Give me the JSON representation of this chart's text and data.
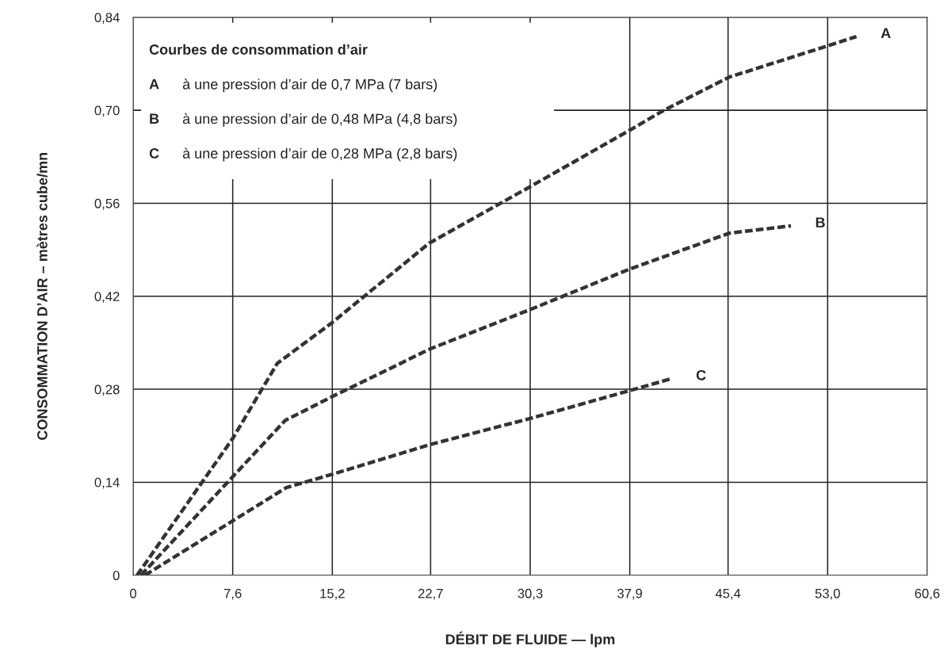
{
  "chart_data": {
    "type": "line",
    "xlabel": "DÉBIT DE FLUIDE — lpm",
    "ylabel": "CONSOMMATION D’AIR – mètres cube/mn",
    "legend_title": "Courbes de consommation d’air",
    "annotations": [
      "à une pression d’air de 0,7 MPa (7 bars)",
      "à une pression d’air de 0,48 MPa (4,8 bars)",
      "à une pression d’air de 0,28 MPa (2,8 bars)"
    ],
    "series": [
      {
        "name": "A",
        "color": "#333333",
        "x": [
          0.3,
          7.6,
          11.0,
          15.1,
          22.6,
          30.3,
          37.9,
          40.5,
          45.5,
          53.0,
          55.2
        ],
        "values": [
          0,
          0.206,
          0.319,
          0.379,
          0.5,
          0.585,
          0.67,
          0.7,
          0.75,
          0.797,
          0.811
        ]
      },
      {
        "name": "B",
        "color": "#333333",
        "x": [
          0.6,
          11.6,
          15.2,
          22.7,
          30.3,
          37.9,
          45.5,
          50.2
        ],
        "values": [
          0,
          0.233,
          0.269,
          0.341,
          0.4,
          0.461,
          0.515,
          0.526
        ]
      },
      {
        "name": "C",
        "color": "#333333",
        "x": [
          0.9,
          11.7,
          15.2,
          22.7,
          30.3,
          37.9,
          41.1
        ],
        "values": [
          0,
          0.132,
          0.152,
          0.197,
          0.236,
          0.278,
          0.296
        ]
      }
    ],
    "xlim": [
      0,
      60.6
    ],
    "xticks": [
      0,
      {
        "value": 7.6,
        "label": "7,6"
      },
      {
        "value": 15.2,
        "label": "15,2"
      },
      {
        "value": 22.7,
        "label": "22,7"
      },
      {
        "value": 30.3,
        "label": "30,3"
      },
      {
        "value": 37.9,
        "label": "37,9"
      },
      {
        "value": 45.4,
        "label": "45,4"
      },
      {
        "value": 53.0,
        "label": "53,0"
      },
      {
        "value": 60.6,
        "label": "60,6"
      }
    ],
    "ylim": [
      0,
      0.84
    ],
    "yticks": [
      0,
      {
        "value": 0.14,
        "label": "0,14"
      },
      {
        "value": 0.28,
        "label": "0,28"
      },
      {
        "value": 0.42,
        "label": "0,42"
      },
      {
        "value": 0.56,
        "label": "0,56"
      },
      {
        "value": 0.7,
        "label": "0,70"
      },
      {
        "value": 0.84,
        "label": "0,84"
      }
    ],
    "grid": true,
    "line_style": "dashed",
    "marker": "none"
  }
}
